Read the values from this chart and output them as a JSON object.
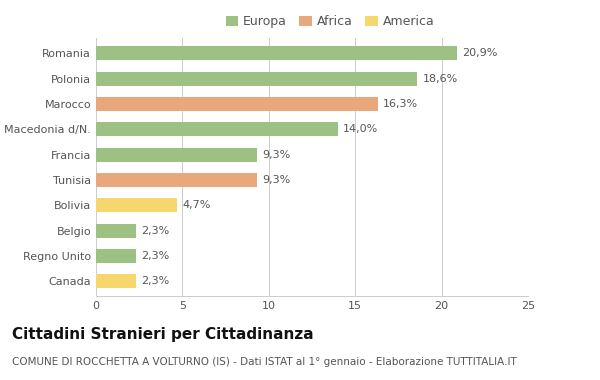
{
  "categories": [
    "Romania",
    "Polonia",
    "Marocco",
    "Macedonia d/N.",
    "Francia",
    "Tunisia",
    "Bolivia",
    "Belgio",
    "Regno Unito",
    "Canada"
  ],
  "values": [
    20.9,
    18.6,
    16.3,
    14.0,
    9.3,
    9.3,
    4.7,
    2.3,
    2.3,
    2.3
  ],
  "labels": [
    "20,9%",
    "18,6%",
    "16,3%",
    "14,0%",
    "9,3%",
    "9,3%",
    "4,7%",
    "2,3%",
    "2,3%",
    "2,3%"
  ],
  "colors": [
    "#9dc183",
    "#9dc183",
    "#e8a87c",
    "#9dc183",
    "#9dc183",
    "#e8a87c",
    "#f5d76e",
    "#9dc183",
    "#9dc183",
    "#f5d76e"
  ],
  "legend": {
    "Europa": "#9dc183",
    "Africa": "#e8a87c",
    "America": "#f5d76e"
  },
  "title": "Cittadini Stranieri per Cittadinanza",
  "subtitle": "COMUNE DI ROCCHETTA A VOLTURNO (IS) - Dati ISTAT al 1° gennaio - Elaborazione TUTTITALIA.IT",
  "xlim": [
    0,
    25
  ],
  "xticks": [
    0,
    5,
    10,
    15,
    20,
    25
  ],
  "background_color": "#ffffff",
  "bar_height": 0.55,
  "grid_color": "#cccccc",
  "title_fontsize": 11,
  "subtitle_fontsize": 7.5,
  "label_fontsize": 8,
  "tick_fontsize": 8,
  "legend_fontsize": 9
}
